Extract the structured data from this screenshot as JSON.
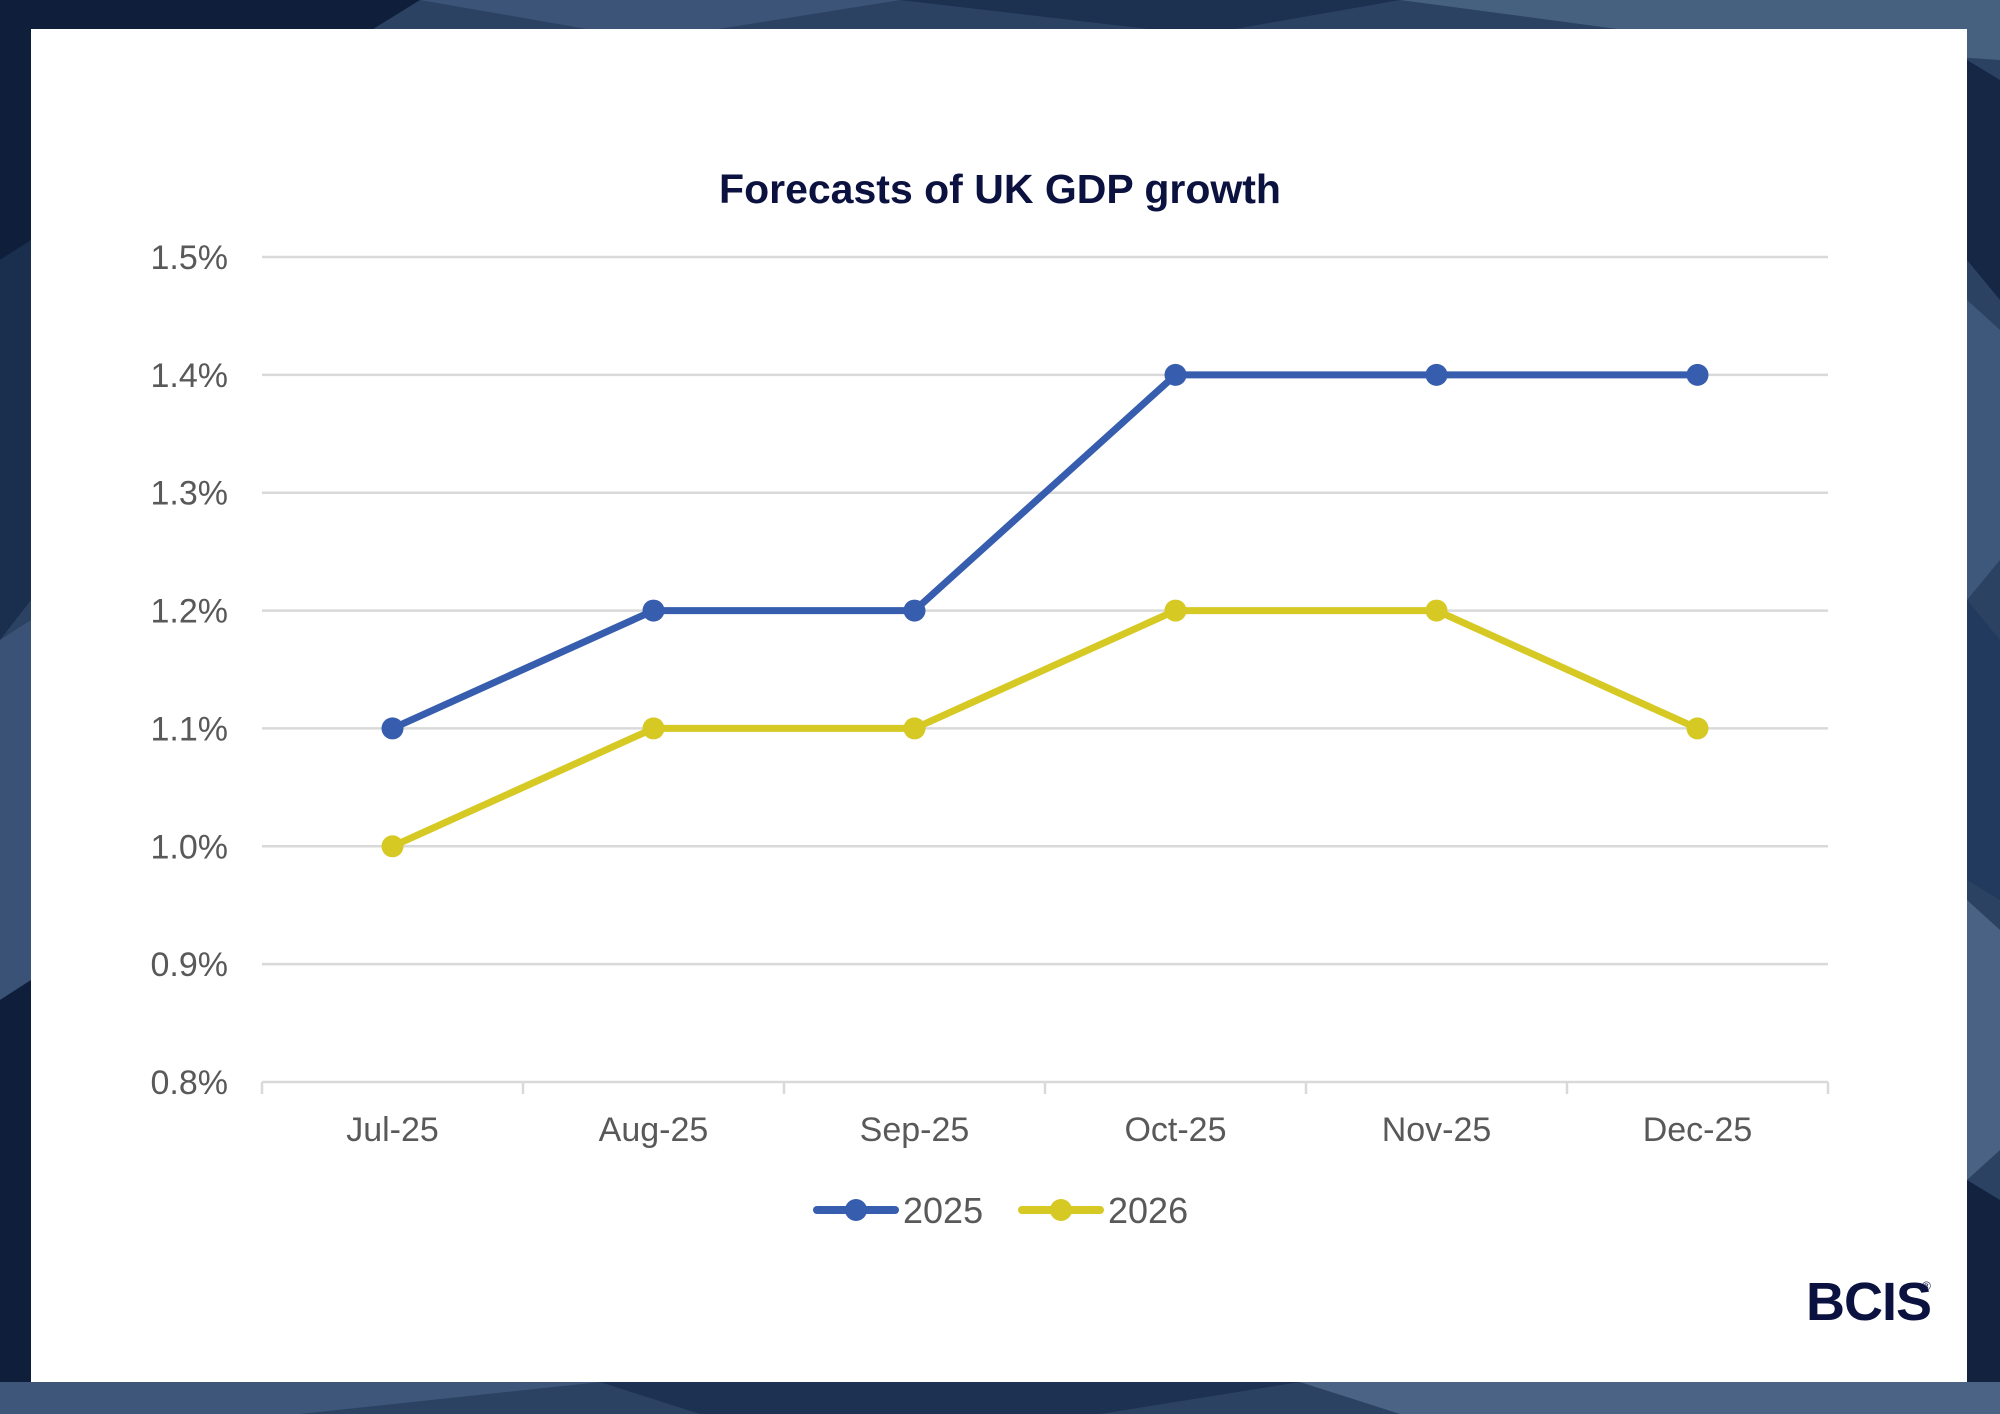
{
  "brand": {
    "logo_text": "BCIS",
    "registered_mark": "®"
  },
  "colors": {
    "series_2025": "#365dae",
    "series_2026": "#d6c924",
    "title": "#0b1240",
    "axis_text": "#595959",
    "gridline": "#d9d9d9"
  },
  "chart_data": {
    "type": "line",
    "title": "Forecasts of UK GDP growth",
    "xlabel": "",
    "ylabel": "",
    "categories": [
      "Jul-25",
      "Aug-25",
      "Sep-25",
      "Oct-25",
      "Nov-25",
      "Dec-25"
    ],
    "y_ticks": [
      "0.8%",
      "0.9%",
      "1.0%",
      "1.1%",
      "1.2%",
      "1.3%",
      "1.4%",
      "1.5%"
    ],
    "y_tick_values": [
      0.8,
      0.9,
      1.0,
      1.1,
      1.2,
      1.3,
      1.4,
      1.5
    ],
    "ylim": [
      0.8,
      1.5
    ],
    "y_unit": "%",
    "grid": true,
    "legend_position": "bottom",
    "series": [
      {
        "name": "2025",
        "values": [
          1.1,
          1.2,
          1.2,
          1.4,
          1.4,
          1.4
        ]
      },
      {
        "name": "2026",
        "values": [
          1.0,
          1.1,
          1.1,
          1.2,
          1.2,
          1.1
        ]
      }
    ]
  }
}
